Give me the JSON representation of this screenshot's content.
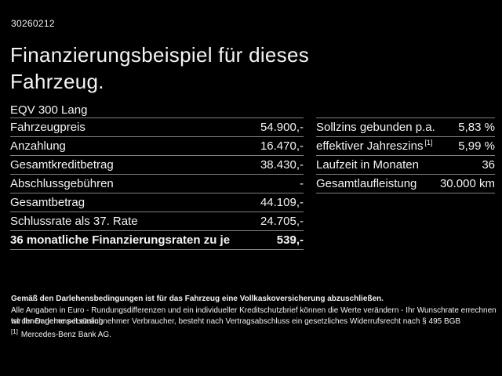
{
  "page": {
    "ref_number": "30260212",
    "title_line1": "Finanzierungsbeispiel für dieses",
    "title_line2": "Fahrzeug.",
    "model": "EQV 300 Lang"
  },
  "left_table": {
    "rows": [
      {
        "label": "Fahrzeugpreis",
        "value": "54.900,-"
      },
      {
        "label": "Anzahlung",
        "value": "16.470,-"
      },
      {
        "label": "Gesamtkreditbetrag",
        "value": "38.430,-"
      },
      {
        "label": "Abschlussgebühren",
        "value": "-"
      },
      {
        "label": "Gesamtbetrag",
        "value": "44.109,-"
      },
      {
        "label": "Schlussrate als 37. Rate",
        "value": "24.705,-"
      },
      {
        "label": "36 monatliche Finanzierungsraten zu je",
        "value": "539,-"
      }
    ]
  },
  "right_table": {
    "rows": [
      {
        "label": "Sollzins gebunden p.a.",
        "sup": "",
        "value": "5,83 %"
      },
      {
        "label": "effektiver Jahreszins",
        "sup": "[1]",
        "value": "5,99 %"
      },
      {
        "label": "Laufzeit in Monaten",
        "sup": "",
        "value": "36"
      },
      {
        "label": "Gesamtlaufleistung",
        "sup": "",
        "value": "30.000 km"
      }
    ]
  },
  "footer": {
    "line_bold": "Gemäß den Darlehensbedingungen ist für das Fahrzeug eine Vollkaskoversicherung abzuschließen.",
    "line2": "Alle Angaben in Euro - Rundungsdifferenzen und ein individueller Kreditschutzbrief können die Werte verändern - Ihr Wunschrate errechnen wir Ihnen gerne persönlich",
    "line3": "Ist der Darlehens-/Leasingnehmer Verbraucher, besteht nach Vertragsabschluss ein gesetzliches Widerrufsrecht nach § 495 BGB",
    "footnote_marker": "[1]",
    "footnote_text": "Mercedes-Benz Bank AG."
  },
  "colors": {
    "background": "#000000",
    "text": "#f4f4f4",
    "divider": "#808080"
  }
}
